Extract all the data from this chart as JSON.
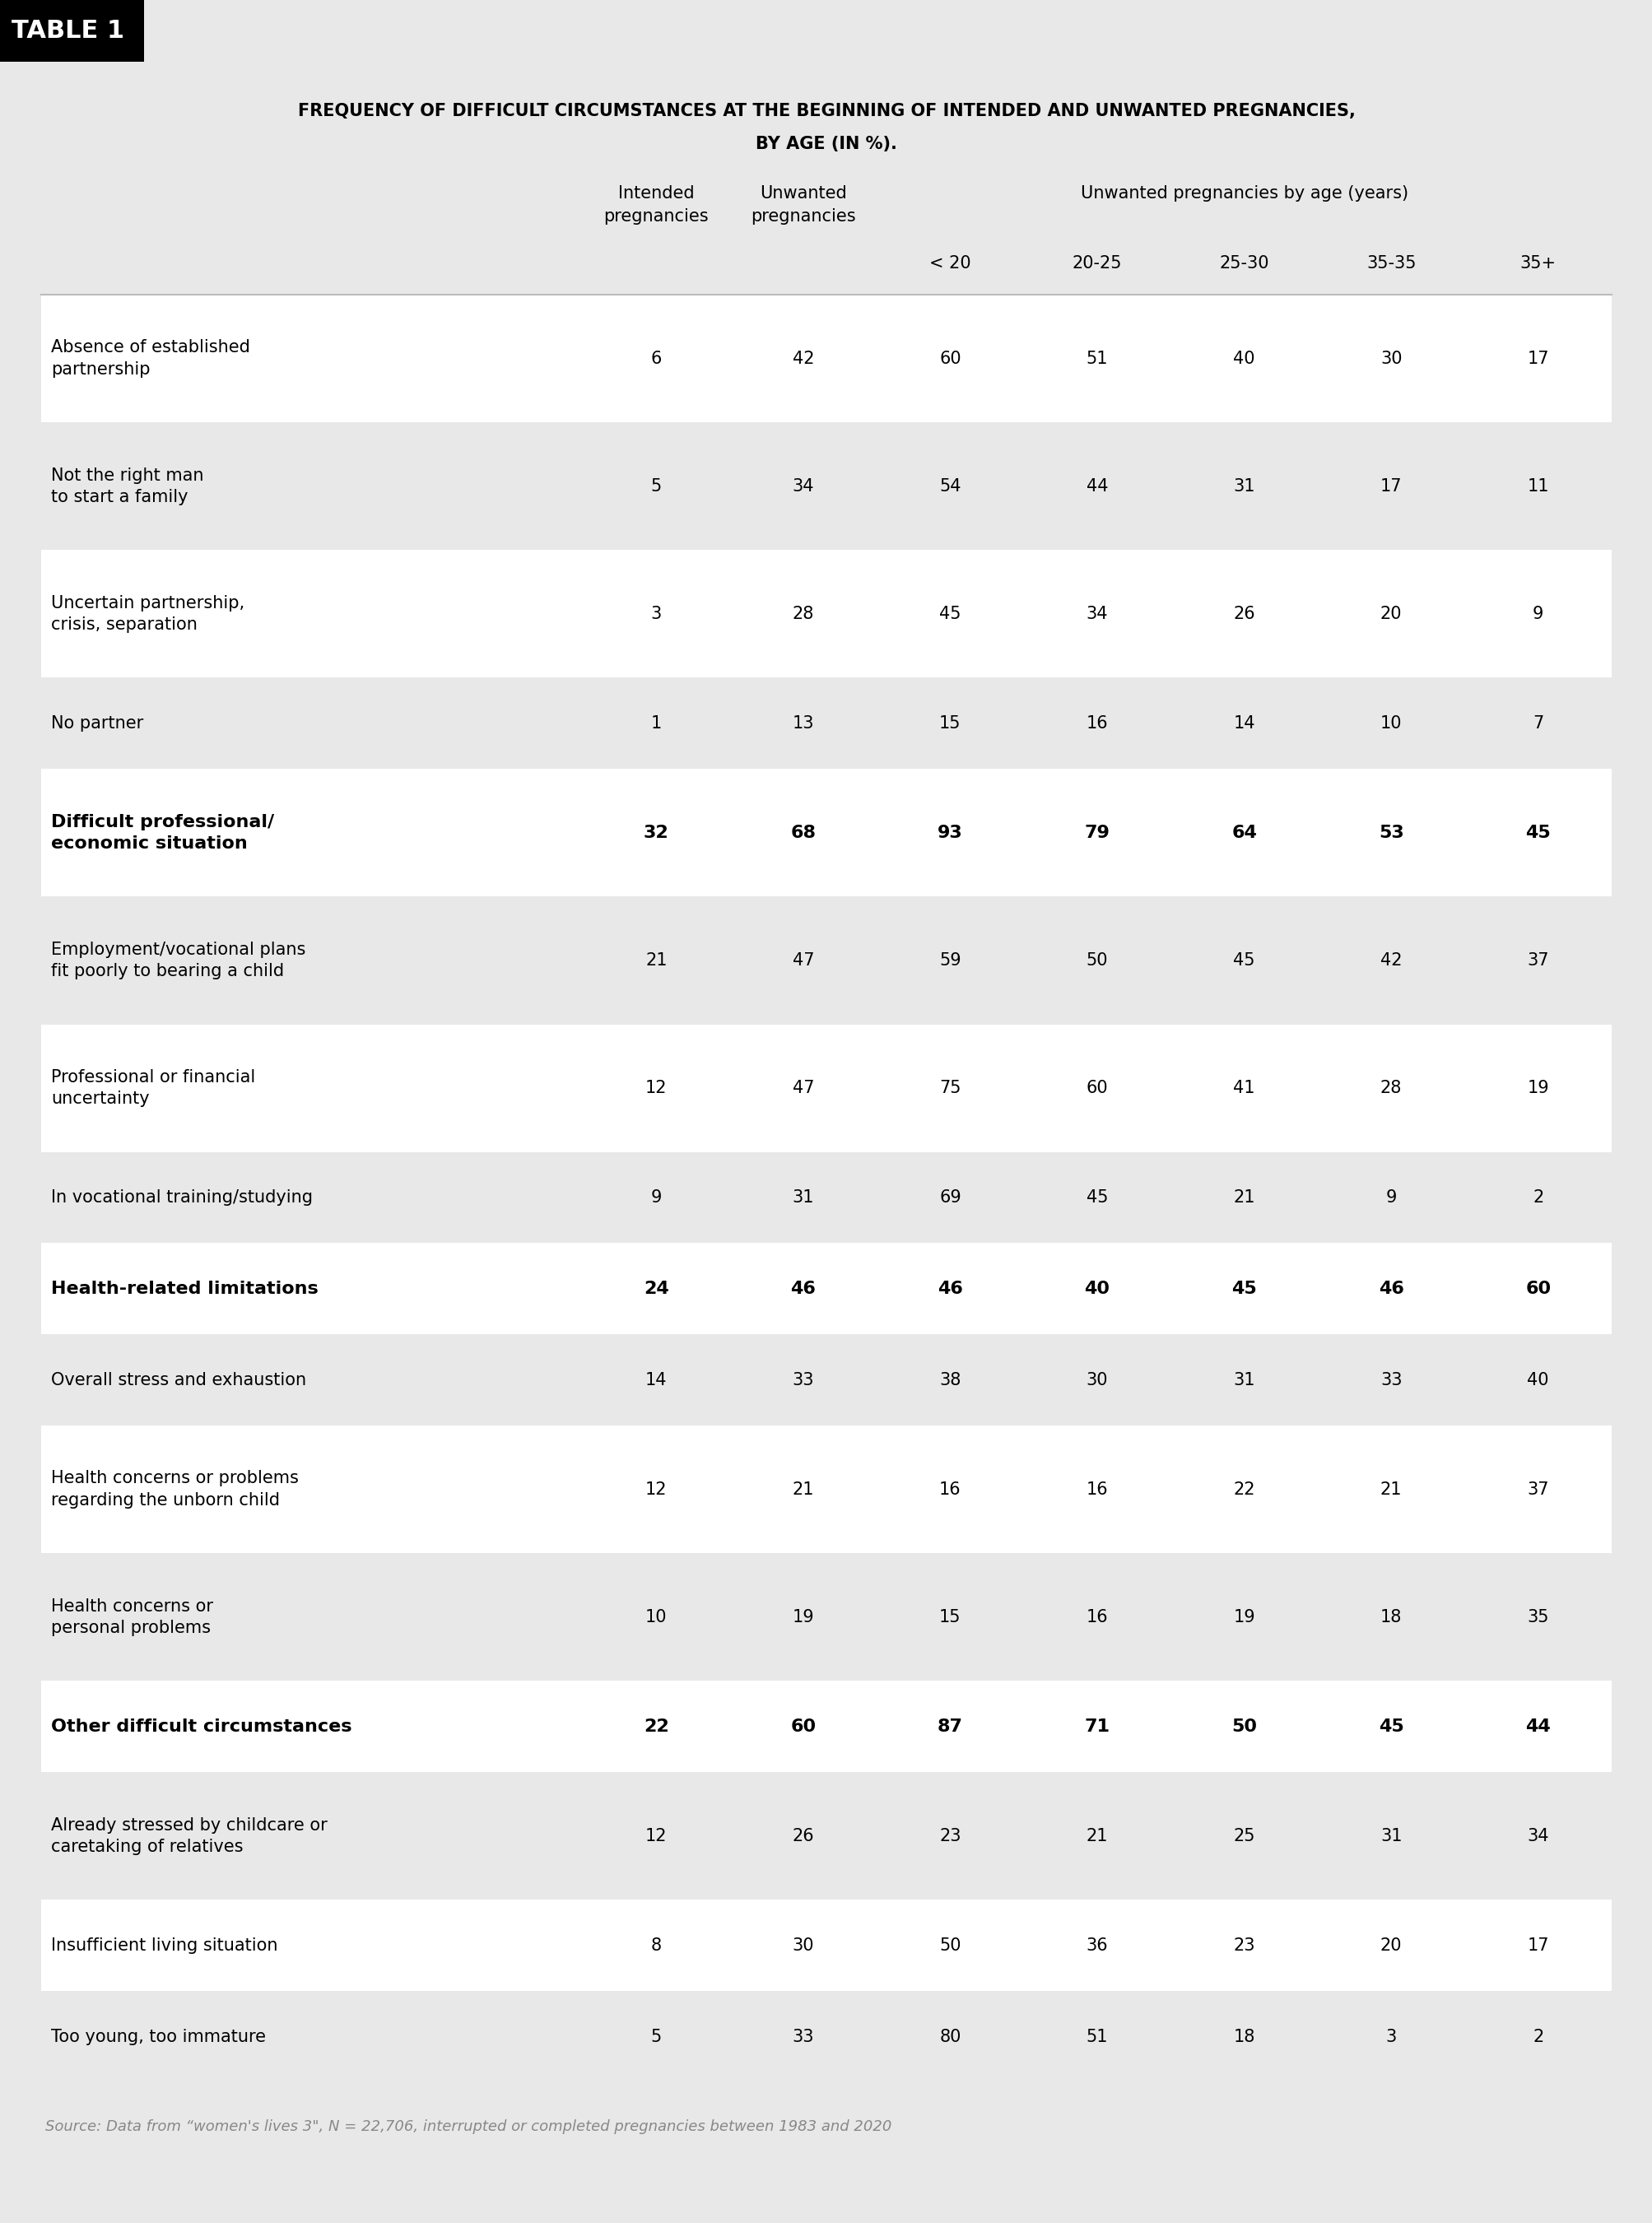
{
  "table_label": "TABLE 1",
  "title_line1": "FREQUENCY OF DIFFICULT CIRCUMSTANCES AT THE BEGINNING OF INTENDED AND UNWANTED PREGNANCIES,",
  "title_line2": "BY AGE (IN %).",
  "col_group_header": "Unwanted pregnancies by age (years)",
  "age_labels": [
    "< 20",
    "20-25",
    "25-30",
    "35-35",
    "35+"
  ],
  "rows": [
    {
      "label": "Absence of established\npartnership",
      "values": [
        6,
        42,
        60,
        51,
        40,
        30,
        17
      ],
      "bold": false,
      "bg": "#ffffff"
    },
    {
      "label": "Not the right man\nto start a family",
      "values": [
        5,
        34,
        54,
        44,
        31,
        17,
        11
      ],
      "bold": false,
      "bg": "#e8e8e8"
    },
    {
      "label": "Uncertain partnership,\ncrisis, separation",
      "values": [
        3,
        28,
        45,
        34,
        26,
        20,
        9
      ],
      "bold": false,
      "bg": "#ffffff"
    },
    {
      "label": "No partner",
      "values": [
        1,
        13,
        15,
        16,
        14,
        10,
        7
      ],
      "bold": false,
      "bg": "#e8e8e8"
    },
    {
      "label": "Difficult professional/\neconomic situation",
      "values": [
        32,
        68,
        93,
        79,
        64,
        53,
        45
      ],
      "bold": true,
      "bg": "#ffffff"
    },
    {
      "label": "Employment/vocational plans\nfit poorly to bearing a child",
      "values": [
        21,
        47,
        59,
        50,
        45,
        42,
        37
      ],
      "bold": false,
      "bg": "#e8e8e8"
    },
    {
      "label": "Professional or financial\nuncertainty",
      "values": [
        12,
        47,
        75,
        60,
        41,
        28,
        19
      ],
      "bold": false,
      "bg": "#ffffff"
    },
    {
      "label": "In vocational training/studying",
      "values": [
        9,
        31,
        69,
        45,
        21,
        9,
        2
      ],
      "bold": false,
      "bg": "#e8e8e8"
    },
    {
      "label": "Health-related limitations",
      "values": [
        24,
        46,
        46,
        40,
        45,
        46,
        60
      ],
      "bold": true,
      "bg": "#ffffff"
    },
    {
      "label": "Overall stress and exhaustion",
      "values": [
        14,
        33,
        38,
        30,
        31,
        33,
        40
      ],
      "bold": false,
      "bg": "#e8e8e8"
    },
    {
      "label": "Health concerns or problems\nregarding the unborn child",
      "values": [
        12,
        21,
        16,
        16,
        22,
        21,
        37
      ],
      "bold": false,
      "bg": "#ffffff"
    },
    {
      "label": "Health concerns or\npersonal problems",
      "values": [
        10,
        19,
        15,
        16,
        19,
        18,
        35
      ],
      "bold": false,
      "bg": "#e8e8e8"
    },
    {
      "label": "Other difficult circumstances",
      "values": [
        22,
        60,
        87,
        71,
        50,
        45,
        44
      ],
      "bold": true,
      "bg": "#ffffff"
    },
    {
      "label": "Already stressed by childcare or\ncaretaking of relatives",
      "values": [
        12,
        26,
        23,
        21,
        25,
        31,
        34
      ],
      "bold": false,
      "bg": "#e8e8e8"
    },
    {
      "label": "Insufficient living situation",
      "values": [
        8,
        30,
        50,
        36,
        23,
        20,
        17
      ],
      "bold": false,
      "bg": "#ffffff"
    },
    {
      "label": "Too young, too immature",
      "values": [
        5,
        33,
        80,
        51,
        18,
        3,
        2
      ],
      "bold": false,
      "bg": "#e8e8e8"
    }
  ],
  "source_text": "Source: Data from “women's lives 3\", N = 22,706, interrupted or completed pregnancies between 1983 and 2020",
  "bg_color": "#e8e8e8",
  "row_white": "#ffffff",
  "row_gray": "#e8e8e8",
  "label_box_color": "#000000",
  "label_text_color": "#ffffff",
  "text_color": "#000000",
  "divider_color": "#bbbbbb",
  "title_fontsize": 15,
  "header_fontsize": 15,
  "cell_fontsize": 15,
  "source_fontsize": 13,
  "label_fontsize": 22
}
